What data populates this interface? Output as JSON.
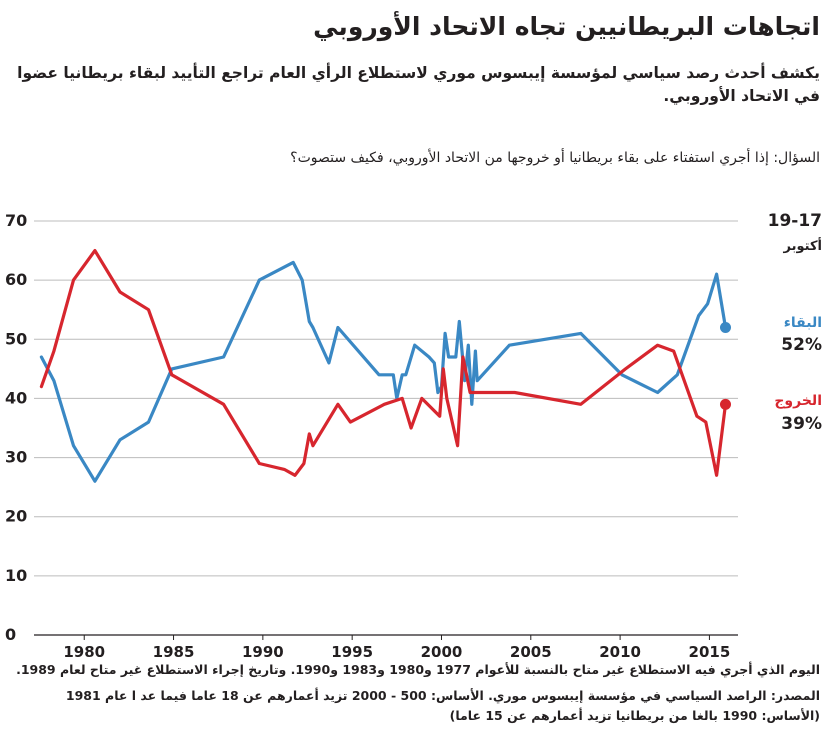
{
  "title": "اتجاهات البريطانيين تجاه الاتحاد الأوروبي",
  "subtitle": "يكشف أحدث رصد سياسي لمؤسسة إيبسوس موري لاستطلاع الرأي العام تراجع التأييد لبقاء بريطانيا عضوا في الاتحاد الأوروبي.",
  "question": "السؤال: إذا أجري استفتاء على بقاء بريطانيا أو خروجها من الاتحاد الأوروبي، فكيف ستصوت؟",
  "notes": {
    "line1": "اليوم الذي أجري فيه الاستطلاع غير متاح بالنسبة للأعوام 1977 و1980 و1983 و1990. وتاريخ إجراء الاستطلاع غير متاح لعام 1989.",
    "line2": "المصدر: الراصد السياسي في مؤسسة إيبسوس موري. الأساس: 500 - 2000 تزيد أعمارهم عن 18 عاما فيما عد ا عام 1981 (الأساس: 1990 بالغا من بريطانيا تزيد أعمارهم عن 15 عاما)"
  },
  "colors": {
    "remain": "#3a88c4",
    "leave": "#d7262e",
    "grid": "#bcbcbc",
    "text": "#231f20"
  },
  "chart_data": {
    "type": "line",
    "title": "اتجاهات البريطانيين تجاه الاتحاد الأوروبي",
    "xlabel": "",
    "ylabel": "",
    "xlim": [
      1977.3,
      2016.6
    ],
    "ylim": [
      0,
      70
    ],
    "xticks": [
      1980,
      1985,
      1990,
      1995,
      2000,
      2005,
      2010,
      2015
    ],
    "yticks": [
      0,
      10,
      20,
      30,
      40,
      50,
      60,
      70
    ],
    "grid": true,
    "date_label": {
      "line1": "19-17",
      "line2": "أكتوبر"
    },
    "series": [
      {
        "name": "البقاء",
        "color": "#3a88c4",
        "latest_label": "52%",
        "x": [
          1977.6,
          1978.3,
          1979.4,
          1980.6,
          1982.0,
          1983.6,
          1984.9,
          1987.8,
          1989.8,
          1991.7,
          1992.2,
          1992.6,
          1992.8,
          1993.7,
          1994.2,
          1996.5,
          1997.3,
          1997.5,
          1997.8,
          1998.0,
          1998.5,
          1999.3,
          1999.6,
          1999.8,
          2000.0,
          2000.2,
          2000.4,
          2000.8,
          2001.0,
          2001.3,
          2001.5,
          2001.7,
          2001.9,
          2002.0,
          2003.8,
          2007.8,
          2010.1,
          2012.1,
          2013.2,
          2014.4,
          2014.9,
          2015.4,
          2015.9
        ],
        "values": [
          47,
          43,
          32,
          26,
          33,
          36,
          45,
          47,
          60,
          63,
          60,
          53,
          52,
          46,
          52,
          44,
          44,
          40,
          44,
          44,
          49,
          47,
          46,
          41,
          42,
          51,
          47,
          47,
          53,
          43,
          49,
          39,
          48,
          43,
          49,
          51,
          44,
          41,
          44,
          54,
          56,
          61,
          52
        ]
      },
      {
        "name": "الخروج",
        "color": "#d7262e",
        "latest_label": "39%",
        "x": [
          1977.6,
          1978.3,
          1979.4,
          1980.6,
          1982.0,
          1983.6,
          1984.9,
          1987.8,
          1989.8,
          1991.2,
          1991.8,
          1992.3,
          1992.6,
          1992.8,
          1994.2,
          1994.9,
          1996.8,
          1997.8,
          1998.3,
          1998.9,
          1999.9,
          2000.1,
          2000.3,
          2000.9,
          2001.2,
          2001.6,
          2002.0,
          2004.1,
          2007.8,
          2010.3,
          2012.1,
          2013.0,
          2014.3,
          2014.8,
          2015.4,
          2015.9
        ],
        "values": [
          42,
          48,
          60,
          65,
          58,
          55,
          44,
          39,
          29,
          28,
          27,
          29,
          34,
          32,
          39,
          36,
          39,
          40,
          35,
          40,
          37,
          45,
          40,
          32,
          47,
          41,
          41,
          41,
          39,
          45,
          49,
          48,
          37,
          36,
          27,
          39
        ]
      }
    ]
  }
}
